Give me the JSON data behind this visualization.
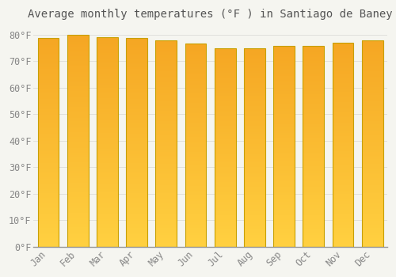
{
  "title": "Average monthly temperatures (°F ) in Santiago de Baney",
  "months": [
    "Jan",
    "Feb",
    "Mar",
    "Apr",
    "May",
    "Jun",
    "Jul",
    "Aug",
    "Sep",
    "Oct",
    "Nov",
    "Dec"
  ],
  "values": [
    78.8,
    80.0,
    79.0,
    78.8,
    77.9,
    76.6,
    75.0,
    75.0,
    75.9,
    75.9,
    77.0,
    77.9
  ],
  "bar_color_top": "#F5A623",
  "bar_color_bottom": "#FFD040",
  "bar_edge_color": "#C8A000",
  "background_color": "#F5F5F0",
  "plot_bg_color": "#F5F5F0",
  "grid_color": "#E0E0DC",
  "ylim": [
    0,
    84
  ],
  "yticks": [
    0,
    10,
    20,
    30,
    40,
    50,
    60,
    70,
    80
  ],
  "ytick_labels": [
    "0°F",
    "10°F",
    "20°F",
    "30°F",
    "40°F",
    "50°F",
    "60°F",
    "70°F",
    "80°F"
  ],
  "title_fontsize": 10,
  "tick_fontsize": 8.5,
  "title_color": "#555555",
  "tick_color": "#888888",
  "font_family": "monospace",
  "bar_width": 0.72
}
